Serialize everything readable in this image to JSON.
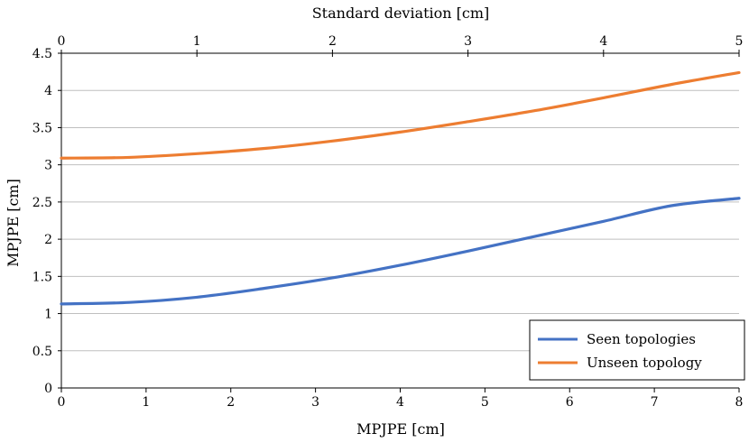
{
  "chart_data": {
    "type": "line",
    "xlabel": "MPJPE [cm]",
    "x2label": "Standard deviation [cm]",
    "ylabel": "MPJPE [cm]",
    "xlim": [
      0,
      8
    ],
    "x2lim": [
      0,
      5
    ],
    "ylim": [
      0,
      4.5
    ],
    "x_ticks": [
      "0",
      "1",
      "2",
      "3",
      "4",
      "5",
      "6",
      "7",
      "8"
    ],
    "x2_ticks": [
      "0",
      "1",
      "2",
      "3",
      "4",
      "5"
    ],
    "y_ticks": [
      "0",
      "0.5",
      "1",
      "1.5",
      "2",
      "2.5",
      "3",
      "3.5",
      "4",
      "4.5"
    ],
    "grid": true,
    "legend_position": "bottom-right",
    "series": [
      {
        "name": "Seen topologies",
        "color": "#4472C4",
        "x": [
          0,
          0.5,
          1,
          1.5,
          2,
          2.5,
          3,
          3.5,
          4,
          4.5,
          5
        ],
        "y": [
          1.13,
          1.15,
          1.22,
          1.34,
          1.48,
          1.65,
          1.84,
          2.04,
          2.24,
          2.45,
          2.55
        ]
      },
      {
        "name": "Unseen topology",
        "color": "#ED7D31",
        "x": [
          0,
          0.5,
          1,
          1.5,
          2,
          2.5,
          3,
          3.5,
          4,
          4.5,
          5
        ],
        "y": [
          3.09,
          3.1,
          3.15,
          3.22,
          3.32,
          3.44,
          3.58,
          3.73,
          3.9,
          4.08,
          4.24
        ]
      }
    ]
  }
}
